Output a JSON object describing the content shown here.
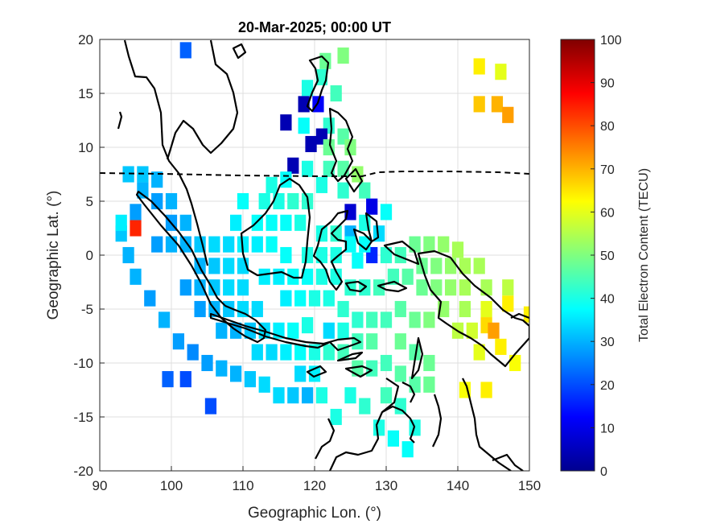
{
  "chart_data": {
    "type": "heatmap",
    "title": "20-Mar-2025; 00:00 UT",
    "xlabel": "Geographic Lon. (°)",
    "ylabel": "Geographic Lat. (°)",
    "xlim": [
      90,
      150
    ],
    "ylim": [
      -20,
      20
    ],
    "x_ticks": [
      "90",
      "100",
      "110",
      "120",
      "130",
      "140",
      "150"
    ],
    "y_ticks": [
      "20",
      "15",
      "10",
      "5",
      "0",
      "-5",
      "-10",
      "-15",
      "-20"
    ],
    "grid": true,
    "colormap": "jet",
    "colorbar": {
      "label": "Total Electron Content (TECU)",
      "range": [
        0,
        100
      ],
      "ticks": [
        "100",
        "90",
        "80",
        "70",
        "60",
        "50",
        "40",
        "30",
        "20",
        "10",
        "0"
      ]
    },
    "cell_size_deg": [
      1.6,
      1.5
    ],
    "cells": [
      [
        102,
        19,
        22
      ],
      [
        124,
        18.5,
        50
      ],
      [
        121.5,
        18,
        48
      ],
      [
        121,
        16.5,
        42
      ],
      [
        119,
        15.5,
        40
      ],
      [
        123,
        15,
        44
      ],
      [
        118.5,
        14,
        5
      ],
      [
        120.5,
        14,
        12
      ],
      [
        116,
        12.3,
        5
      ],
      [
        118.5,
        12,
        38
      ],
      [
        122,
        12,
        42
      ],
      [
        121,
        11,
        5
      ],
      [
        124,
        11,
        46
      ],
      [
        119.5,
        10.3,
        5
      ],
      [
        122,
        10,
        48
      ],
      [
        125,
        10,
        50
      ],
      [
        117,
        8.3,
        5
      ],
      [
        119,
        8,
        40
      ],
      [
        122,
        8,
        44
      ],
      [
        124,
        8,
        46
      ],
      [
        126,
        7.5,
        52
      ],
      [
        121,
        6.5,
        40
      ],
      [
        124,
        6,
        42
      ],
      [
        127,
        6,
        44
      ],
      [
        125,
        4,
        8
      ],
      [
        128,
        4.5,
        10
      ],
      [
        130,
        4,
        38
      ],
      [
        127,
        3,
        40
      ],
      [
        125,
        2,
        30
      ],
      [
        129,
        2,
        34
      ],
      [
        128,
        0,
        16
      ],
      [
        126,
        -0.5,
        38
      ],
      [
        130,
        0,
        42
      ],
      [
        132,
        0,
        44
      ],
      [
        134,
        1,
        48
      ],
      [
        136,
        1,
        50
      ],
      [
        138,
        1,
        52
      ],
      [
        140,
        0.5,
        54
      ],
      [
        131,
        -2,
        44
      ],
      [
        133,
        -2,
        46
      ],
      [
        135,
        -1,
        48
      ],
      [
        137,
        -1,
        50
      ],
      [
        139,
        -1,
        52
      ],
      [
        141,
        -1,
        54
      ],
      [
        143,
        -1,
        54
      ],
      [
        135,
        -3,
        48
      ],
      [
        137,
        -3,
        50
      ],
      [
        139,
        -3,
        52
      ],
      [
        141,
        -3,
        54
      ],
      [
        144,
        -3,
        54
      ],
      [
        147,
        -3,
        56
      ],
      [
        138,
        -5,
        52
      ],
      [
        141,
        -5,
        54
      ],
      [
        144,
        -5,
        60
      ],
      [
        147,
        -4.5,
        64
      ],
      [
        150,
        -5.5,
        64
      ],
      [
        140,
        -7,
        56
      ],
      [
        142,
        -7,
        58
      ],
      [
        144,
        -6.5,
        66
      ],
      [
        145,
        -7,
        72
      ],
      [
        143,
        -9,
        60
      ],
      [
        146,
        -8.5,
        64
      ],
      [
        148,
        -10,
        62
      ],
      [
        141,
        -12.5,
        62
      ],
      [
        144,
        -12.5,
        64
      ],
      [
        143,
        17.5,
        64
      ],
      [
        146,
        17,
        60
      ],
      [
        143,
        14,
        68
      ],
      [
        145.5,
        14,
        70
      ],
      [
        147,
        13,
        72
      ],
      [
        132,
        -5,
        46
      ],
      [
        134,
        -6,
        48
      ],
      [
        136,
        -6,
        50
      ],
      [
        132,
        -8,
        48
      ],
      [
        134,
        -9,
        46
      ],
      [
        136,
        -10,
        48
      ],
      [
        130,
        -10,
        44
      ],
      [
        132,
        -11,
        46
      ],
      [
        134,
        -12,
        46
      ],
      [
        136,
        -12,
        48
      ],
      [
        130,
        -13,
        44
      ],
      [
        132,
        -14,
        42
      ],
      [
        134,
        -16,
        40
      ],
      [
        131,
        -17,
        38
      ],
      [
        133,
        -18,
        38
      ],
      [
        129,
        -16,
        40
      ],
      [
        127,
        -14,
        42
      ],
      [
        125,
        -13,
        40
      ],
      [
        123,
        -15,
        40
      ],
      [
        121,
        -13,
        40
      ],
      [
        119,
        -13,
        30
      ],
      [
        117,
        -13,
        32
      ],
      [
        115,
        -13,
        34
      ],
      [
        113,
        -12,
        34
      ],
      [
        111,
        -11.5,
        32
      ],
      [
        109,
        -11,
        30
      ],
      [
        107,
        -10.5,
        30
      ],
      [
        105,
        -10,
        28
      ],
      [
        103,
        -9,
        26
      ],
      [
        101,
        -8,
        28
      ],
      [
        99,
        -6,
        30
      ],
      [
        97,
        -4,
        28
      ],
      [
        95,
        -2,
        30
      ],
      [
        94,
        0,
        30
      ],
      [
        93,
        2,
        32
      ],
      [
        93,
        3,
        36
      ],
      [
        95,
        2.5,
        84
      ],
      [
        95,
        4,
        28
      ],
      [
        96,
        6,
        30
      ],
      [
        94,
        7.5,
        32
      ],
      [
        96,
        7.5,
        32
      ],
      [
        98,
        7,
        30
      ],
      [
        98,
        5,
        28
      ],
      [
        100,
        5,
        30
      ],
      [
        100,
        3,
        28
      ],
      [
        102,
        3,
        30
      ],
      [
        98,
        1,
        28
      ],
      [
        100,
        1,
        30
      ],
      [
        102,
        1,
        30
      ],
      [
        104,
        1,
        32
      ],
      [
        104,
        -1,
        30
      ],
      [
        106,
        -1,
        32
      ],
      [
        108,
        -1,
        34
      ],
      [
        110,
        -1,
        34
      ],
      [
        106,
        1,
        34
      ],
      [
        108,
        1,
        34
      ],
      [
        110,
        1,
        36
      ],
      [
        112,
        1,
        36
      ],
      [
        114,
        1,
        38
      ],
      [
        116,
        0,
        38
      ],
      [
        109,
        3,
        36
      ],
      [
        112,
        3,
        38
      ],
      [
        114,
        3,
        38
      ],
      [
        116,
        3,
        38
      ],
      [
        118,
        3,
        40
      ],
      [
        110,
        5,
        38
      ],
      [
        113,
        5,
        40
      ],
      [
        115,
        5,
        40
      ],
      [
        117,
        5,
        42
      ],
      [
        119,
        5,
        42
      ],
      [
        114,
        6.5,
        40
      ],
      [
        116,
        7,
        38
      ],
      [
        102,
        -3,
        28
      ],
      [
        104,
        -3,
        30
      ],
      [
        106,
        -3,
        32
      ],
      [
        108,
        -3,
        34
      ],
      [
        110,
        -3,
        34
      ],
      [
        104,
        -5,
        28
      ],
      [
        106,
        -5,
        30
      ],
      [
        108,
        -5,
        32
      ],
      [
        110,
        -5,
        34
      ],
      [
        112,
        -5,
        34
      ],
      [
        107,
        -7,
        30
      ],
      [
        109,
        -7,
        30
      ],
      [
        111,
        -7,
        32
      ],
      [
        113,
        -7,
        34
      ],
      [
        115,
        -7,
        36
      ],
      [
        117,
        -7,
        38
      ],
      [
        119,
        -6.5,
        40
      ],
      [
        112,
        -9,
        34
      ],
      [
        114,
        -9,
        34
      ],
      [
        116,
        -9,
        36
      ],
      [
        118,
        -9,
        38
      ],
      [
        120,
        -9,
        40
      ],
      [
        122,
        -9,
        42
      ],
      [
        124,
        -9,
        44
      ],
      [
        126,
        -8,
        44
      ],
      [
        128,
        -8,
        46
      ],
      [
        122,
        -7,
        34
      ],
      [
        124,
        -7,
        40
      ],
      [
        126,
        -6,
        42
      ],
      [
        128,
        -6,
        44
      ],
      [
        130,
        -6,
        44
      ],
      [
        128,
        -10.5,
        44
      ],
      [
        126,
        -10.5,
        46
      ],
      [
        120,
        -11,
        36
      ],
      [
        118,
        -11,
        34
      ],
      [
        102,
        -11.5,
        20
      ],
      [
        105.5,
        -14,
        20
      ],
      [
        99.5,
        -11.5,
        22
      ],
      [
        119,
        -2,
        38
      ],
      [
        121,
        -2,
        40
      ],
      [
        123,
        -2,
        40
      ],
      [
        125,
        -3,
        42
      ],
      [
        127,
        -3,
        42
      ],
      [
        129,
        -3,
        44
      ],
      [
        121,
        0,
        40
      ],
      [
        123,
        0,
        40
      ],
      [
        125,
        1,
        38
      ],
      [
        127,
        1,
        38
      ],
      [
        121,
        2,
        40
      ],
      [
        123,
        2,
        42
      ],
      [
        119,
        0,
        40
      ],
      [
        117,
        -2,
        38
      ],
      [
        115,
        -2,
        36
      ],
      [
        113,
        -2,
        36
      ],
      [
        116,
        -4,
        36
      ],
      [
        118,
        -4,
        38
      ],
      [
        120,
        -4,
        40
      ],
      [
        122,
        -4,
        40
      ],
      [
        124,
        -5,
        42
      ]
    ]
  }
}
